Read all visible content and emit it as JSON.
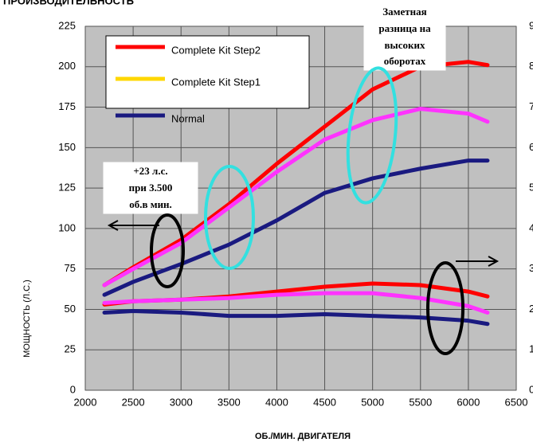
{
  "chart_data": {
    "type": "line",
    "title": "ПРОИЗВОДИТЕЛЬНОСТЬ",
    "x_label": "ОБ./МИН. ДВИГАТЕЛЯ",
    "y_label": "МОЩНОСТЬ (Л.С.)",
    "x": [
      2200,
      2500,
      3000,
      3500,
      4000,
      4500,
      5000,
      5500,
      6000,
      6200
    ],
    "xlim": [
      2000,
      6500
    ],
    "xticks": [
      2000,
      2500,
      3000,
      3500,
      4000,
      4500,
      5000,
      5500,
      6000,
      6500
    ],
    "ylim": [
      0,
      225
    ],
    "yticks": [
      0,
      25,
      50,
      75,
      100,
      125,
      150,
      175,
      200,
      225
    ],
    "y2lim": [
      0,
      9
    ],
    "y2ticks": [
      0,
      1,
      2,
      3,
      4,
      5,
      6,
      7,
      8,
      9
    ],
    "grid": true,
    "series": [
      {
        "name": "Complete Kit Step2",
        "color": "#ff0000",
        "legend_color": "#ff0000",
        "values": [
          65,
          76,
          93,
          115,
          140,
          163,
          186,
          200,
          203,
          201
        ],
        "y2_values": [
          2.12,
          2.2,
          2.24,
          2.32,
          2.44,
          2.56,
          2.64,
          2.6,
          2.44,
          2.32
        ]
      },
      {
        "name": "Complete Kit Step1",
        "color": "#ff33ff",
        "legend_color": "#ffd700",
        "values": [
          65,
          75,
          91,
          113,
          135,
          155,
          167,
          174,
          171,
          166
        ],
        "y2_values": [
          2.16,
          2.2,
          2.24,
          2.28,
          2.36,
          2.4,
          2.4,
          2.28,
          2.08,
          1.92
        ]
      },
      {
        "name": "Normal",
        "color": "#1a1a80",
        "legend_color": "#1a1a80",
        "values": [
          59,
          67,
          78,
          90,
          105,
          122,
          131,
          137,
          142,
          142
        ],
        "y2_values": [
          1.92,
          1.96,
          1.92,
          1.84,
          1.84,
          1.88,
          1.84,
          1.8,
          1.72,
          1.64
        ]
      }
    ],
    "annotations": [
      {
        "lines": [
          "Заметная",
          "разница на",
          "высоких",
          "оборотах"
        ]
      },
      {
        "lines": [
          "+23 л.с.",
          "при 3.500",
          "об.в мин."
        ]
      }
    ]
  }
}
